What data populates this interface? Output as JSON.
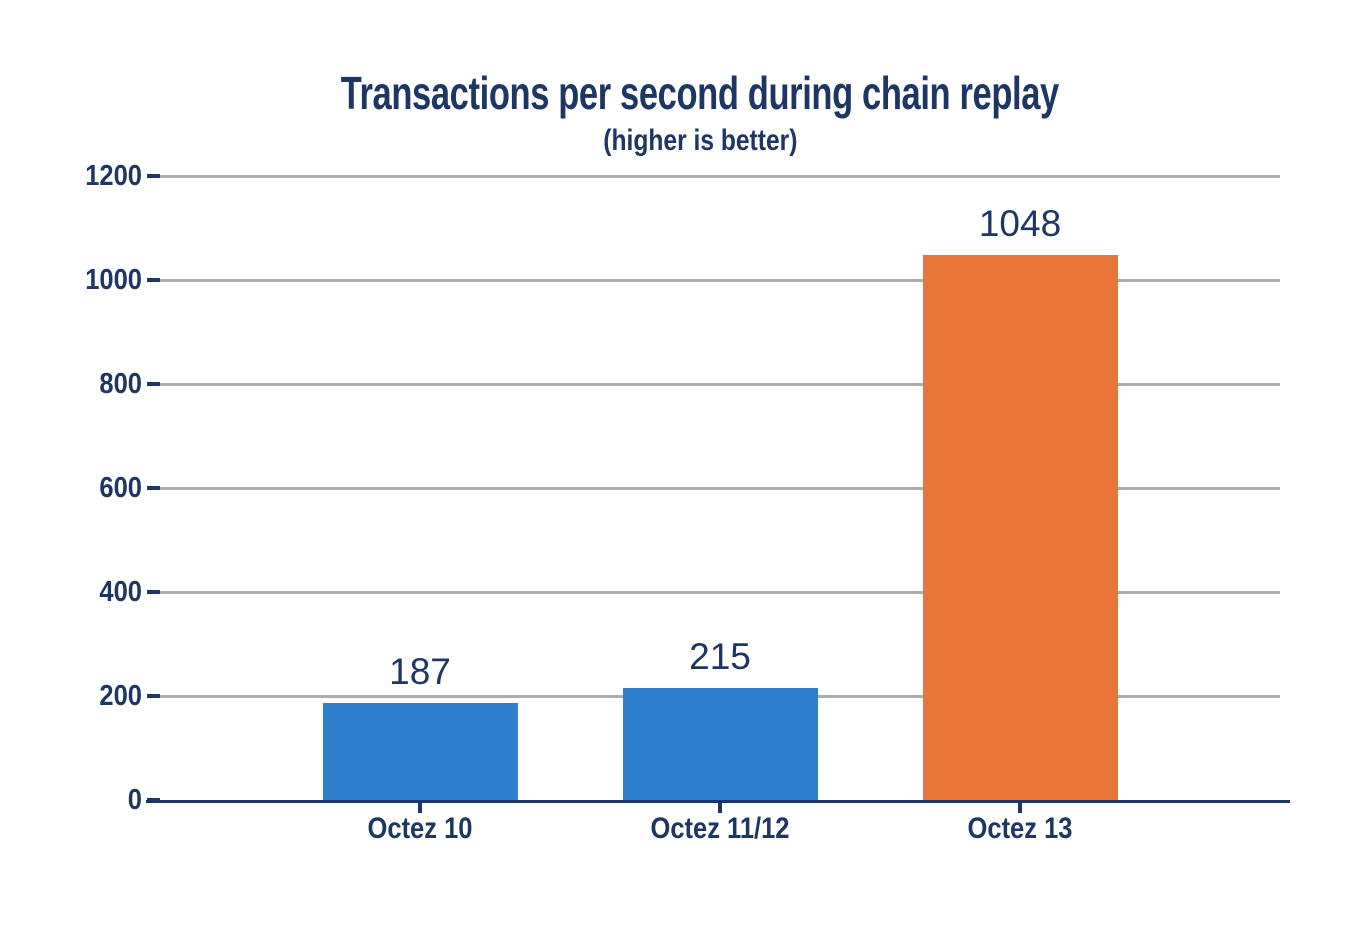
{
  "chart_data": {
    "type": "bar",
    "title": "Transactions per second during chain replay",
    "subtitle": "(higher is better)",
    "categories": [
      "Octez 10",
      "Octez 11/12",
      "Octez 13"
    ],
    "values": [
      187,
      215,
      1048
    ],
    "data_labels": [
      "187",
      "215",
      "1048"
    ],
    "bar_colors": [
      "#2f7fcc",
      "#2f7fcc",
      "#e8753a"
    ],
    "xlabel": "",
    "ylabel": "",
    "ylim": [
      0,
      1200
    ],
    "yticks": [
      0,
      200,
      400,
      600,
      800,
      1000,
      1200
    ],
    "ytick_labels": [
      "0",
      "200",
      "400",
      "600",
      "800",
      "1000",
      "1200"
    ],
    "grid": true,
    "legend": false,
    "colors": {
      "text": "#1e3663",
      "gridline": "#acacac",
      "axis_line": "#1e3663",
      "plot_background": "#ffffff",
      "blue_bar": "#2f7fcc",
      "orange_bar": "#e8753a"
    }
  }
}
